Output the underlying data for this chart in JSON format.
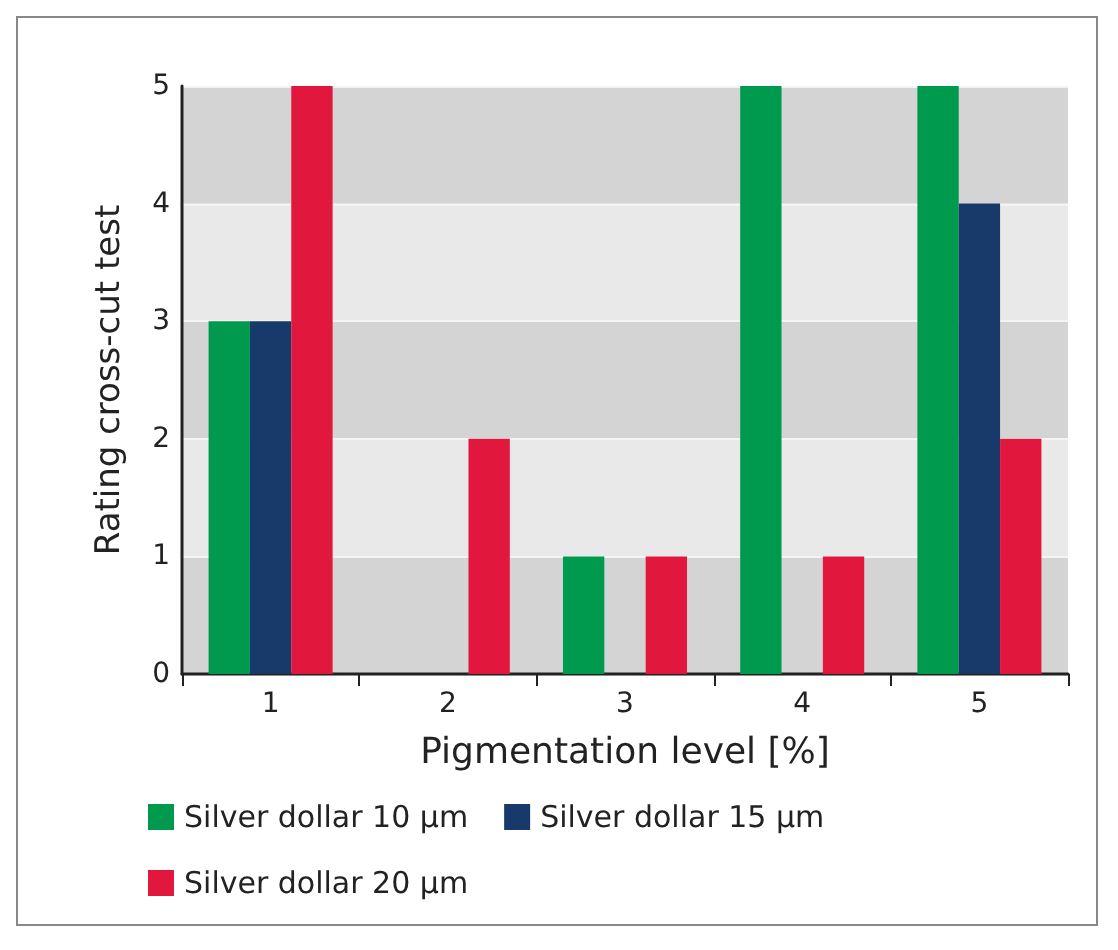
{
  "chart_data": {
    "type": "bar",
    "xlabel": "Pigmentation level [%]",
    "ylabel": "Rating cross-cut test",
    "categories": [
      "1",
      "2",
      "3",
      "4",
      "5"
    ],
    "series": [
      {
        "name": "Silver dollar 10 µm",
        "color": "#009a4e",
        "values": [
          3,
          0,
          1,
          5,
          5
        ]
      },
      {
        "name": "Silver dollar 15 µm",
        "color": "#173a6b",
        "values": [
          3,
          0,
          0,
          0,
          4
        ]
      },
      {
        "name": "Silver dollar 20 µm",
        "color": "#e2173d",
        "values": [
          5,
          2,
          1,
          1,
          2
        ]
      }
    ],
    "ylim": [
      0,
      5
    ],
    "yticks": [
      0,
      1,
      2,
      3,
      4,
      5
    ],
    "grid": "y",
    "legend": "bottom left"
  }
}
